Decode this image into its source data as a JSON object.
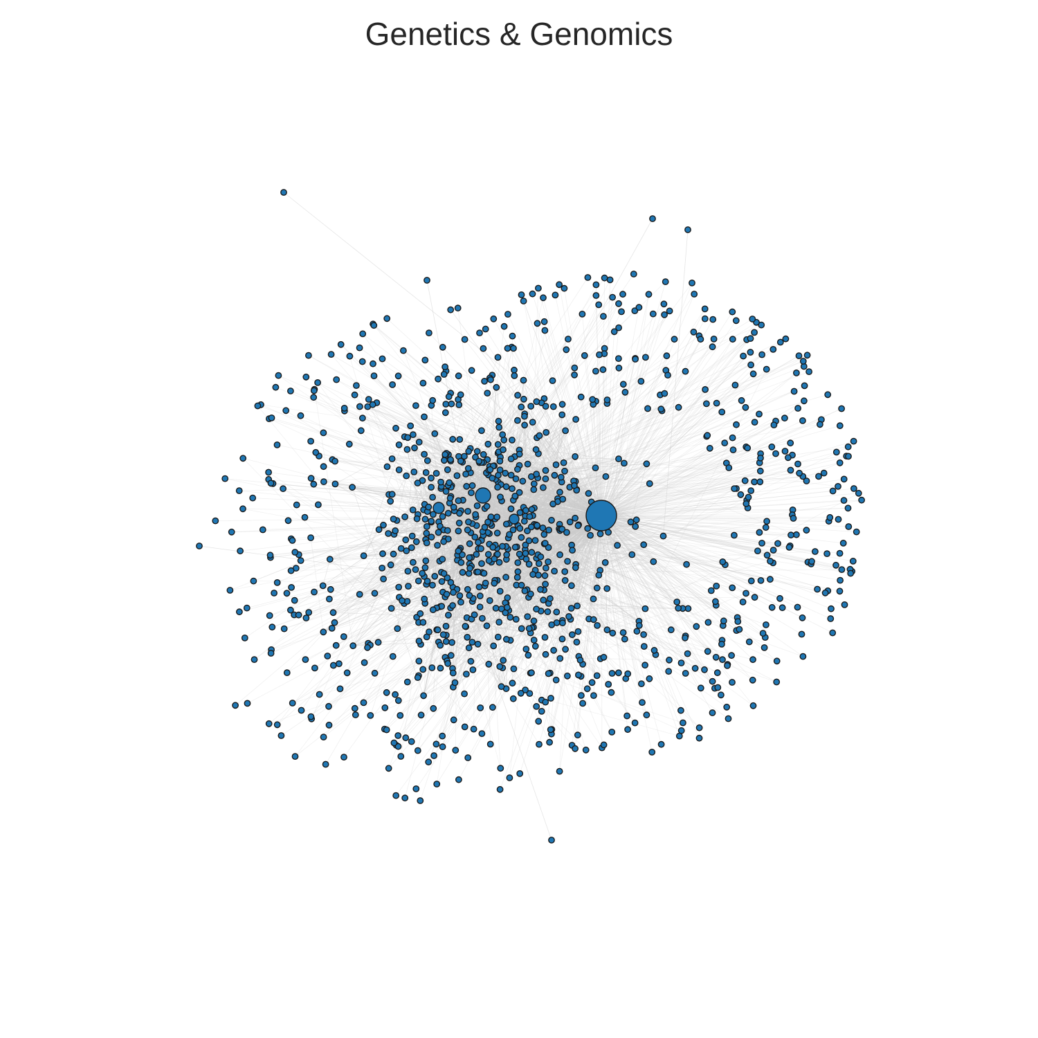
{
  "figure": {
    "title": "Genetics & Genomics"
  },
  "network": {
    "type": "network",
    "layout": "force-directed",
    "node_color": "#1f77b4",
    "node_edge_color": "#1a1a1a",
    "edge_color": "#cccccc",
    "background": "#ffffff",
    "hubs": 4,
    "outlier_nodes": 6
  }
}
